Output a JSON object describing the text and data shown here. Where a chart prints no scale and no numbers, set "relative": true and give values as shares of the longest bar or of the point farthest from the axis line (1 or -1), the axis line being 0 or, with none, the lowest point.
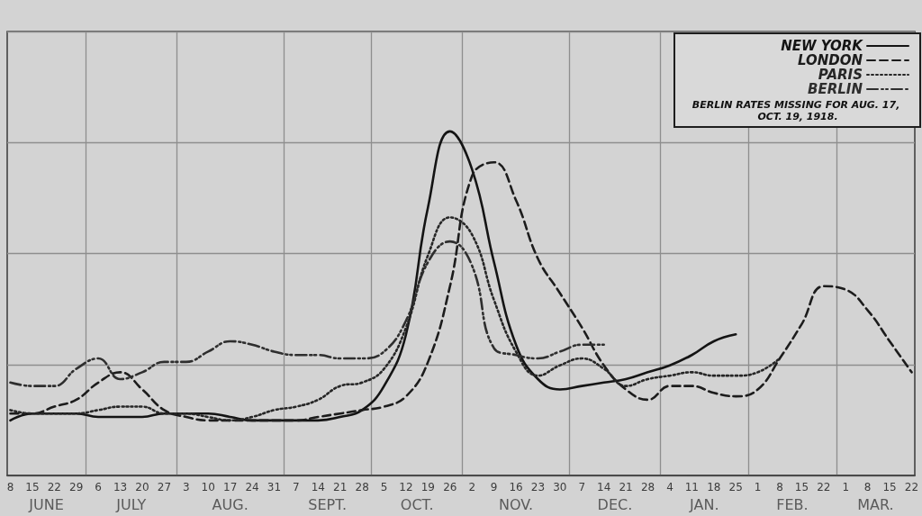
{
  "chart_data": {
    "type": "line",
    "relative": true,
    "x": [
      "1918-06-08",
      "1918-06-15",
      "1918-06-22",
      "1918-06-29",
      "1918-07-06",
      "1918-07-13",
      "1918-07-20",
      "1918-07-27",
      "1918-08-03",
      "1918-08-10",
      "1918-08-17",
      "1918-08-24",
      "1918-08-31",
      "1918-09-07",
      "1918-09-14",
      "1918-09-21",
      "1918-09-28",
      "1918-10-05",
      "1918-10-12",
      "1918-10-19",
      "1918-10-26",
      "1918-11-02",
      "1918-11-09",
      "1918-11-16",
      "1918-11-23",
      "1918-11-30",
      "1918-12-07",
      "1918-12-14",
      "1918-12-21",
      "1918-12-28",
      "1919-01-04",
      "1919-01-11",
      "1919-01-18",
      "1919-01-25",
      "1919-02-01",
      "1919-02-08",
      "1919-02-15",
      "1919-02-22",
      "1919-03-01",
      "1919-03-08",
      "1919-03-15",
      "1919-03-22"
    ],
    "series": [
      {
        "name": "NEW YORK",
        "color": "#141414",
        "line_style": "solid",
        "values": [
          0.16,
          0.18,
          0.18,
          0.18,
          0.17,
          0.17,
          0.17,
          0.18,
          0.18,
          0.18,
          0.17,
          0.16,
          0.16,
          0.16,
          0.16,
          0.17,
          0.19,
          0.26,
          0.41,
          0.78,
          1,
          0.89,
          0.62,
          0.38,
          0.28,
          0.25,
          0.26,
          0.27,
          0.28,
          0.3,
          0.32,
          0.35,
          0.39,
          0.41,
          null,
          null,
          null,
          null,
          null,
          null,
          null,
          null
        ]
      },
      {
        "name": "LONDON",
        "color": "#1c1c1c",
        "line_style": "dashed",
        "values": [
          0.18,
          0.18,
          0.2,
          0.22,
          0.27,
          0.3,
          0.25,
          0.19,
          0.17,
          0.16,
          0.16,
          0.16,
          0.16,
          0.16,
          0.17,
          0.18,
          0.19,
          0.2,
          0.23,
          0.33,
          0.55,
          0.87,
          0.91,
          0.8,
          0.63,
          0.53,
          0.43,
          0.32,
          0.25,
          0.22,
          0.26,
          0.26,
          0.24,
          0.23,
          0.25,
          0.34,
          0.44,
          0.55,
          0.54,
          0.48,
          0.39,
          0.3
        ]
      },
      {
        "name": "PARIS",
        "color": "#262626",
        "line_style": "dotted",
        "values": [
          0.19,
          0.18,
          0.18,
          0.18,
          0.19,
          0.2,
          0.2,
          0.18,
          0.18,
          0.17,
          0.16,
          0.17,
          0.19,
          0.2,
          0.22,
          0.26,
          0.27,
          0.31,
          0.43,
          0.64,
          0.75,
          0.7,
          0.51,
          0.36,
          0.29,
          0.32,
          0.34,
          0.31,
          0.26,
          0.28,
          0.29,
          0.3,
          0.29,
          0.29,
          0.3,
          0.34,
          null,
          null,
          null,
          null,
          null,
          null
        ]
      },
      {
        "name": "BERLIN",
        "color": "#2e2e2e",
        "line_style": "dashdot",
        "values": [
          0.27,
          0.26,
          0.26,
          0.31,
          0.34,
          0.28,
          0.3,
          0.33,
          0.33,
          0.36,
          0.39,
          0.38,
          0.36,
          0.35,
          0.35,
          0.34,
          0.34,
          0.36,
          0.45,
          0.62,
          0.68,
          0.61,
          0.37,
          0.35,
          0.34,
          0.36,
          0.38,
          0.38,
          null,
          null,
          null,
          null,
          null,
          null,
          null,
          null,
          null,
          null,
          null,
          null,
          null,
          null
        ]
      }
    ],
    "xlim": [
      "1918-06-07",
      "1919-03-23"
    ],
    "xticks": [
      {
        "value": "1918-06-08",
        "label": "8"
      },
      {
        "value": "1918-06-15",
        "label": "15"
      },
      {
        "value": "1918-06-22",
        "label": "22"
      },
      {
        "value": "1918-06-29",
        "label": "29"
      },
      {
        "value": "1918-07-06",
        "label": "6"
      },
      {
        "value": "1918-07-13",
        "label": "13"
      },
      {
        "value": "1918-07-20",
        "label": "20"
      },
      {
        "value": "1918-07-27",
        "label": "27"
      },
      {
        "value": "1918-08-03",
        "label": "3"
      },
      {
        "value": "1918-08-10",
        "label": "10"
      },
      {
        "value": "1918-08-17",
        "label": "17"
      },
      {
        "value": "1918-08-24",
        "label": "24"
      },
      {
        "value": "1918-08-31",
        "label": "31"
      },
      {
        "value": "1918-09-07",
        "label": "7"
      },
      {
        "value": "1918-09-14",
        "label": "14"
      },
      {
        "value": "1918-09-21",
        "label": "21"
      },
      {
        "value": "1918-09-28",
        "label": "28"
      },
      {
        "value": "1918-10-05",
        "label": "5"
      },
      {
        "value": "1918-10-12",
        "label": "12"
      },
      {
        "value": "1918-10-19",
        "label": "19"
      },
      {
        "value": "1918-10-26",
        "label": "26"
      },
      {
        "value": "1918-11-02",
        "label": "2"
      },
      {
        "value": "1918-11-09",
        "label": "9"
      },
      {
        "value": "1918-11-16",
        "label": "16"
      },
      {
        "value": "1918-11-23",
        "label": "23"
      },
      {
        "value": "1918-11-30",
        "label": "30"
      },
      {
        "value": "1918-12-07",
        "label": "7"
      },
      {
        "value": "1918-12-14",
        "label": "14"
      },
      {
        "value": "1918-12-21",
        "label": "21"
      },
      {
        "value": "1918-12-28",
        "label": "28"
      },
      {
        "value": "1919-01-04",
        "label": "4"
      },
      {
        "value": "1919-01-11",
        "label": "11"
      },
      {
        "value": "1919-01-18",
        "label": "18"
      },
      {
        "value": "1919-01-25",
        "label": "25"
      },
      {
        "value": "1919-02-01",
        "label": "1"
      },
      {
        "value": "1919-02-08",
        "label": "8"
      },
      {
        "value": "1919-02-15",
        "label": "15"
      },
      {
        "value": "1919-02-22",
        "label": "22"
      },
      {
        "value": "1919-03-01",
        "label": "1"
      },
      {
        "value": "1919-03-08",
        "label": "8"
      },
      {
        "value": "1919-03-15",
        "label": "15"
      },
      {
        "value": "1919-03-22",
        "label": "22"
      },
      {
        "value": "1918-07-02",
        "label": null
      },
      {
        "value": "1918-07-31",
        "label": null
      },
      {
        "value": "1918-09-03",
        "label": null
      },
      {
        "value": "1918-10-01",
        "label": null
      },
      {
        "value": "1918-10-30",
        "label": null
      },
      {
        "value": "1918-12-03",
        "label": null
      },
      {
        "value": "1919-01-01",
        "label": null
      },
      {
        "value": "1919-01-29",
        "label": null
      },
      {
        "value": "1919-02-26",
        "label": null
      }
    ],
    "annotations": [
      "BERLIN RATES MISSING FOR AUG. 17, OCT. 19, 1918.",
      "JUNE",
      "JULY",
      "AUG.",
      "SEPT.",
      "OCT.",
      "NOV.",
      "DEC.",
      "JAN.",
      "FEB.",
      "MAR."
    ],
    "grid": true,
    "legend": "top right",
    "marker": "none"
  }
}
